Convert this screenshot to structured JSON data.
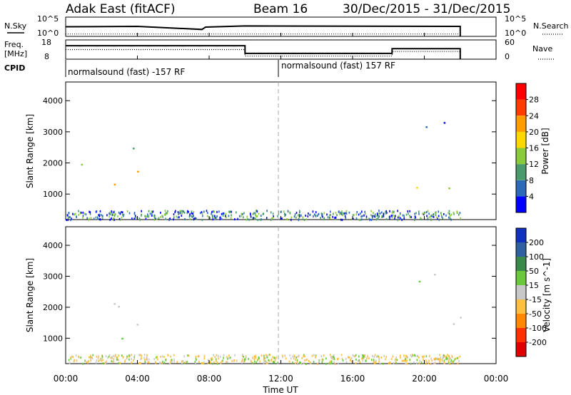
{
  "header": {
    "station": "Adak East (fitACF)",
    "beam": "Beam 16",
    "dates": "30/Dec/2015 - 31/Dec/2015"
  },
  "chart_data": [
    {
      "type": "line",
      "panel": "noise",
      "left_label": "N.Sky",
      "left_ticks": [
        "10^5",
        "10^0"
      ],
      "right_label": "N.Search",
      "right_ticks": [
        "10^5",
        "10^0"
      ],
      "x": [
        0.0,
        4.0,
        7.6,
        7.8,
        10.0,
        22.0
      ],
      "sky_level": [
        2.5,
        2.6,
        1.8,
        2.4,
        2.7,
        2.6
      ],
      "search_level": [
        0.6,
        0.6,
        0.6,
        0.6,
        0.6,
        0.6
      ],
      "ylim": [
        0,
        5
      ]
    },
    {
      "type": "line",
      "panel": "frequency",
      "left_label": "Freq.\n[MHz]",
      "left_ticks": [
        "18",
        "8"
      ],
      "right_label": "Nave",
      "right_ticks": [
        "60",
        "0"
      ],
      "ylim": [
        8,
        18
      ],
      "freq_series": {
        "x": [
          0,
          10,
          10,
          18.2,
          18.2,
          22
        ],
        "y": [
          15,
          15,
          11,
          11,
          13.5,
          13.5
        ]
      },
      "nave_series": {
        "x": [
          0,
          10,
          10,
          18.2,
          18.2,
          22
        ],
        "y": [
          13,
          13,
          9.6,
          9.6,
          12,
          12
        ]
      }
    },
    {
      "type": "table",
      "panel": "cpid",
      "label": "CPID",
      "segments": [
        {
          "start": 0,
          "end": 12,
          "text": "normalsound (fast) -157 RF"
        },
        {
          "start": 12,
          "end": 22,
          "text": "normalsound (fast) 157 RF"
        }
      ]
    },
    {
      "type": "heatmap",
      "panel": "power",
      "ylabel": "Slant Range [km]",
      "yticks": [
        "1000",
        "2000",
        "3000",
        "4000"
      ],
      "ylim": [
        180,
        4600
      ],
      "xlim": [
        0,
        24
      ],
      "colorbar_label": "Power [dB]",
      "colorbar_ticks": [
        "4",
        "8",
        "12",
        "16",
        "20",
        "24",
        "28"
      ],
      "colors": [
        "#0000ff",
        "#2a6ab8",
        "#4a9b6c",
        "#8acb3a",
        "#ffd700",
        "#ff9c00",
        "#ff3c00",
        "#ff0000"
      ],
      "patches": [
        {
          "t0": 0.2,
          "t1": 4.0,
          "r0": 1000,
          "r1": 2100,
          "core": 0.8
        },
        {
          "t0": 0.9,
          "t1": 1.6,
          "r0": 2900,
          "r1": 3350,
          "core": 0.2
        },
        {
          "t0": 2.5,
          "t1": 4.0,
          "r0": 1900,
          "r1": 2700,
          "core": 0.5
        },
        {
          "t0": 18.8,
          "t1": 22.0,
          "r0": 1000,
          "r1": 2100,
          "core": 0.8
        },
        {
          "t0": 18.9,
          "t1": 21.4,
          "r0": 2300,
          "r1": 3500,
          "core": 0.1
        }
      ]
    },
    {
      "type": "heatmap",
      "panel": "velocity",
      "ylabel": "Slant Range [km]",
      "yticks": [
        "1000",
        "2000",
        "3000",
        "4000"
      ],
      "ylim": [
        180,
        4600
      ],
      "xlim": [
        0,
        24
      ],
      "colorbar_label": "Velocity [m s^-1]",
      "colorbar_ticks": [
        "200",
        "100",
        "50",
        "15",
        "-15",
        "-50",
        "-100",
        "-200"
      ],
      "colors": [
        "#1030c0",
        "#3060a0",
        "#3a8a4a",
        "#6ac83a",
        "#c8c8c8",
        "#ffc040",
        "#ff8800",
        "#ff3000",
        "#e00000"
      ],
      "patches": [
        {
          "t0": 0.2,
          "t1": 4.0,
          "r0": 1000,
          "r1": 2100,
          "core": 0.8
        },
        {
          "t0": 0.9,
          "t1": 1.6,
          "r0": 2900,
          "r1": 3350,
          "core": 0.2
        },
        {
          "t0": 2.5,
          "t1": 4.0,
          "r0": 1900,
          "r1": 2700,
          "core": 0.5
        },
        {
          "t0": 18.8,
          "t1": 22.0,
          "r0": 1000,
          "r1": 2100,
          "core": 0.8
        },
        {
          "t0": 18.9,
          "t1": 21.4,
          "r0": 2300,
          "r1": 3500,
          "core": 0.1
        }
      ]
    }
  ],
  "xaxis": {
    "ticks": [
      "00:00",
      "04:00",
      "08:00",
      "12:00",
      "16:00",
      "20:00",
      "00:00"
    ],
    "label": "Time UT"
  }
}
